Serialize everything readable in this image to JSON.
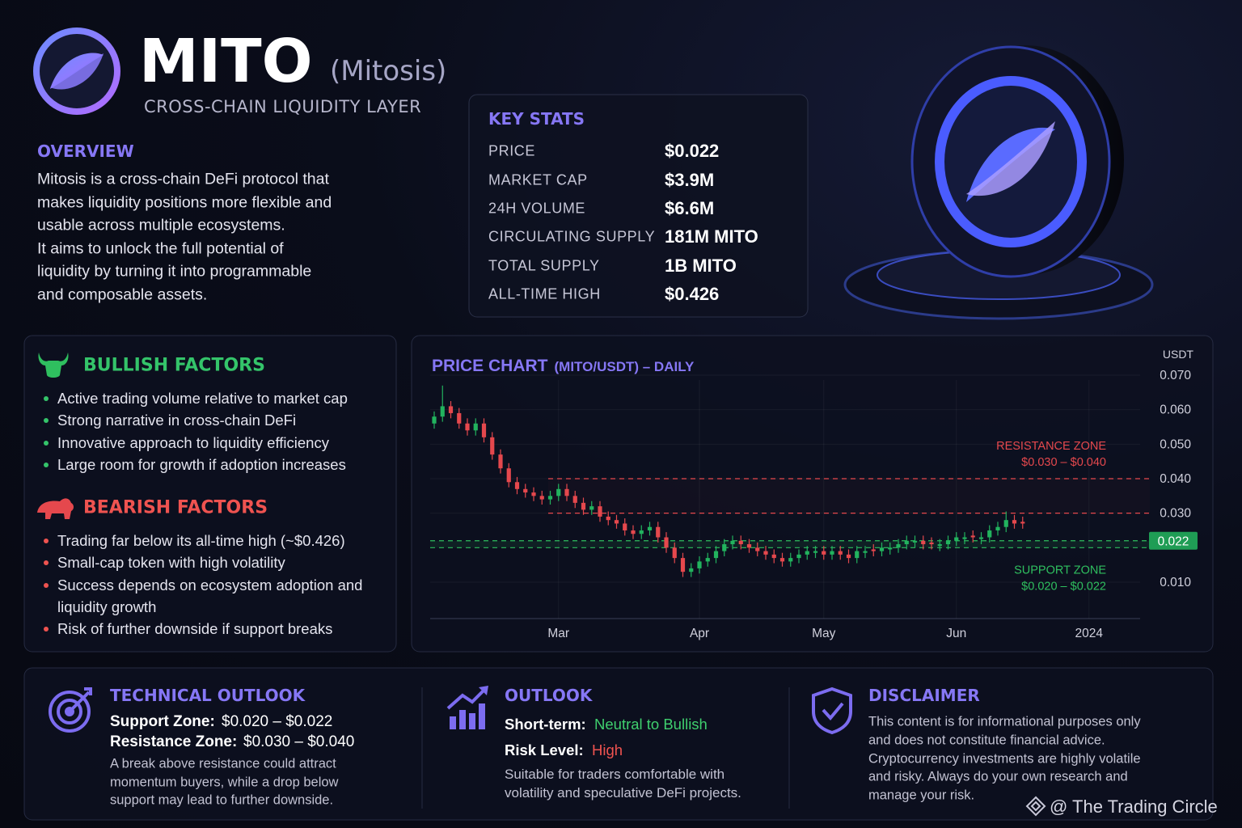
{
  "header": {
    "title": "MITO",
    "subtitle": "(Mitosis)",
    "tagline": "CROSS-CHAIN LIQUIDITY LAYER"
  },
  "overview": {
    "heading": "OVERVIEW",
    "lines": [
      "Mitosis is a cross-chain DeFi protocol that",
      "makes liquidity positions more flexible and",
      "usable across multiple ecosystems.",
      "It aims to unlock the full potential of",
      "liquidity by turning it into programmable",
      "and composable assets."
    ]
  },
  "key_stats": {
    "heading": "KEY STATS",
    "rows": [
      {
        "label": "PRICE",
        "value": "$0.022"
      },
      {
        "label": "MARKET CAP",
        "value": "$3.9M"
      },
      {
        "label": "24H VOLUME",
        "value": "$6.6M"
      },
      {
        "label": "CIRCULATING SUPPLY",
        "value": "181M MITO"
      },
      {
        "label": "TOTAL SUPPLY",
        "value": "1B MITO"
      },
      {
        "label": "ALL-TIME HIGH",
        "value": "$0.426"
      }
    ]
  },
  "bullish": {
    "heading": "BULLISH FACTORS",
    "items": [
      "Active trading volume relative to market cap",
      "Strong narrative in cross-chain DeFi",
      "Innovative approach to liquidity efficiency",
      "Large room for growth if adoption increases"
    ]
  },
  "bearish": {
    "heading": "BEARISH FACTORS",
    "items": [
      "Trading far below its all-time high (~$0.426)",
      "Small-cap token with high volatility",
      "Success depends on ecosystem adoption and liquidity growth",
      "Risk of further downside if support breaks"
    ]
  },
  "chart_data": {
    "type": "candlestick",
    "title": "PRICE CHART",
    "subtitle": "(MITO/USDT) – DAILY",
    "y_label": "USDT",
    "categories": [
      null,
      null,
      null,
      null,
      null,
      null,
      null,
      null,
      null,
      null,
      null,
      null,
      null,
      null,
      null,
      "Mar",
      null,
      null,
      null,
      null,
      null,
      null,
      null,
      null,
      null,
      null,
      null,
      null,
      null,
      null,
      null,
      null,
      "Apr",
      null,
      null,
      null,
      null,
      null,
      null,
      null,
      null,
      null,
      null,
      null,
      null,
      null,
      null,
      "May",
      null,
      null,
      null,
      null,
      null,
      null,
      null,
      null,
      null,
      null,
      null,
      null,
      null,
      null,
      null,
      "Jun",
      null,
      null,
      null,
      null,
      null,
      null,
      null,
      null,
      null,
      null,
      null,
      null,
      null,
      null,
      null,
      "2024"
    ],
    "open": [
      0.056,
      0.058,
      0.061,
      0.059,
      0.056,
      0.054,
      0.056,
      0.052,
      0.047,
      0.043,
      0.039,
      0.037,
      0.036,
      0.035,
      0.034,
      0.035,
      0.037,
      0.035,
      0.033,
      0.031,
      0.032,
      0.029,
      0.028,
      0.027,
      0.025,
      0.024,
      0.025,
      0.026,
      0.023,
      0.02,
      0.017,
      0.013,
      0.014,
      0.016,
      0.017,
      0.019,
      0.021,
      0.022,
      0.021,
      0.02,
      0.019,
      0.018,
      0.017,
      0.016,
      0.017,
      0.018,
      0.0185,
      0.019,
      0.018,
      0.019,
      0.018,
      0.017,
      0.0185,
      0.0195,
      0.019,
      0.0195,
      0.02,
      0.021,
      0.0215,
      0.022,
      0.0215,
      0.0205,
      0.021,
      0.022,
      0.0225,
      0.0235,
      0.0225,
      0.023,
      0.025,
      0.026,
      0.028,
      0.0275,
      null,
      null,
      null,
      null,
      null,
      null,
      null,
      null
    ],
    "high": [
      0.0595,
      0.067,
      0.0625,
      0.0605,
      0.0575,
      0.0575,
      0.0575,
      0.0535,
      0.0485,
      0.0445,
      0.0405,
      0.0385,
      0.0375,
      0.0365,
      0.0365,
      0.0385,
      0.0385,
      0.0365,
      0.0345,
      0.0335,
      0.0335,
      0.0305,
      0.0295,
      0.0285,
      0.0265,
      0.0265,
      0.0275,
      0.0275,
      0.0245,
      0.0215,
      0.0185,
      0.0155,
      0.0175,
      0.0185,
      0.0205,
      0.0225,
      0.0235,
      0.0235,
      0.0225,
      0.0215,
      0.0205,
      0.0195,
      0.0185,
      0.0185,
      0.0195,
      0.0205,
      0.0205,
      0.0205,
      0.0205,
      0.0205,
      0.0195,
      0.0205,
      0.0205,
      0.021,
      0.0215,
      0.0215,
      0.0225,
      0.0235,
      0.0235,
      0.0235,
      0.023,
      0.0225,
      0.0235,
      0.0245,
      0.0245,
      0.025,
      0.0245,
      0.0265,
      0.0275,
      0.0305,
      0.0295,
      0.029,
      null,
      null,
      null,
      null,
      null,
      null,
      null,
      null
    ],
    "low": [
      0.0545,
      0.0565,
      0.0575,
      0.0545,
      0.0525,
      0.0525,
      0.0505,
      0.0455,
      0.0415,
      0.0375,
      0.0355,
      0.0345,
      0.0335,
      0.0325,
      0.0325,
      0.0335,
      0.0335,
      0.0315,
      0.0295,
      0.0295,
      0.0275,
      0.0265,
      0.0255,
      0.0235,
      0.0225,
      0.0225,
      0.0235,
      0.0215,
      0.0185,
      0.0155,
      0.0115,
      0.0115,
      0.0125,
      0.0145,
      0.0155,
      0.0175,
      0.0195,
      0.0195,
      0.0185,
      0.0175,
      0.0165,
      0.0155,
      0.0145,
      0.0145,
      0.0155,
      0.0165,
      0.017,
      0.0165,
      0.0165,
      0.0165,
      0.0155,
      0.0155,
      0.017,
      0.0175,
      0.0175,
      0.018,
      0.0185,
      0.0195,
      0.02,
      0.0195,
      0.0195,
      0.019,
      0.0195,
      0.0205,
      0.021,
      0.0215,
      0.021,
      0.0215,
      0.0235,
      0.0245,
      0.0255,
      0.0255,
      null,
      null,
      null,
      null,
      null,
      null,
      null,
      null
    ],
    "close": [
      0.058,
      0.061,
      0.059,
      0.056,
      0.054,
      0.056,
      0.052,
      0.047,
      0.043,
      0.039,
      0.037,
      0.036,
      0.035,
      0.034,
      0.035,
      0.037,
      0.035,
      0.033,
      0.031,
      0.032,
      0.029,
      0.028,
      0.027,
      0.025,
      0.024,
      0.025,
      0.026,
      0.023,
      0.02,
      0.017,
      0.013,
      0.014,
      0.016,
      0.017,
      0.019,
      0.021,
      0.022,
      0.021,
      0.02,
      0.019,
      0.018,
      0.017,
      0.016,
      0.017,
      0.018,
      0.019,
      0.019,
      0.018,
      0.019,
      0.018,
      0.017,
      0.019,
      0.019,
      0.019,
      0.02,
      0.02,
      0.021,
      0.022,
      0.022,
      0.021,
      0.021,
      0.021,
      0.022,
      0.023,
      0.023,
      0.023,
      0.023,
      0.025,
      0.026,
      0.028,
      0.027,
      0.027,
      null,
      null,
      null,
      null,
      null,
      null,
      null,
      null
    ],
    "up_color": "#22b35e",
    "down_color": "#e5484d",
    "ylim": [
      0.005,
      0.075
    ],
    "yticks": [
      {
        "value": 0.07,
        "label": "0.070"
      },
      {
        "value": 0.06,
        "label": "0.060"
      },
      {
        "value": 0.05,
        "label": "0.050"
      },
      {
        "value": 0.04,
        "label": "0.040"
      },
      {
        "value": 0.03,
        "label": "0.030"
      },
      {
        "value": 0.01,
        "label": "0.010"
      }
    ],
    "grid": true,
    "current_price": 0.022,
    "current_price_color": "#1f9d55",
    "zones": [
      {
        "name": "RESISTANCE ZONE",
        "range_label": "$0.030 – $0.040",
        "low": 0.03,
        "high": 0.04,
        "color": "#e5484d"
      },
      {
        "name": "SUPPORT ZONE",
        "range_label": "$0.020 – $0.022",
        "low": 0.02,
        "high": 0.022,
        "color": "#2fbf5f"
      }
    ]
  },
  "technical_outlook": {
    "heading": "TECHNICAL OUTLOOK",
    "rows": [
      {
        "label": "Support Zone:",
        "value": "$0.020 – $0.022"
      },
      {
        "label": "Resistance Zone:",
        "value": "$0.030 – $0.040"
      }
    ],
    "lines": [
      "A break above resistance could attract",
      "momentum buyers, while a drop below",
      "support may lead to further downside."
    ]
  },
  "outlook": {
    "heading": "OUTLOOK",
    "rows": [
      {
        "label": "Short-term:",
        "value": "Neutral to Bullish"
      },
      {
        "label": "Risk Level:",
        "value": "High"
      }
    ],
    "lines": [
      "Suitable for traders comfortable with",
      "volatility and speculative DeFi projects."
    ]
  },
  "disclaimer": {
    "heading": "DISCLAIMER",
    "lines": [
      "This content is for informational purposes only",
      "and does not constitute financial advice.",
      "Cryptocurrency investments are highly volatile",
      "and risky. Always do your own research and",
      "manage your risk."
    ]
  },
  "watermark": "@ The Trading Circle"
}
